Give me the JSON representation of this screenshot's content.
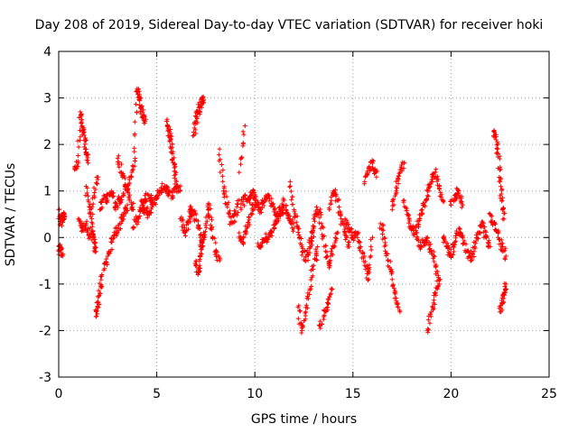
{
  "chart_data": {
    "type": "scatter",
    "title": "Day 208 of 2019, Sidereal Day-to-day VTEC variation (SDTVAR) for receiver hoki",
    "xlabel": "GPS time / hours",
    "ylabel": "SDTVAR / TECUs",
    "xlim": [
      0,
      25
    ],
    "ylim": [
      -3,
      4
    ],
    "xticks": [
      "0",
      "5",
      "10",
      "15",
      "20",
      "25"
    ],
    "yticks": [
      "-3",
      "-2",
      "-1",
      "0",
      "1",
      "2",
      "3",
      "4"
    ],
    "grid": true,
    "marker": "+",
    "series_color": "#ff0000",
    "series": [
      {
        "name": "SDTVAR",
        "segments": [
          {
            "x": [
              0.0,
              0.1,
              0.2,
              0.3
            ],
            "y": [
              0.6,
              0.3,
              0.5,
              0.4
            ]
          },
          {
            "x": [
              0.0,
              0.1,
              0.2
            ],
            "y": [
              -0.3,
              -0.2,
              -0.4
            ]
          },
          {
            "x": [
              0.8,
              1.0,
              1.1,
              1.2,
              1.3,
              1.4,
              1.5
            ],
            "y": [
              1.5,
              1.6,
              2.7,
              2.4,
              2.2,
              1.9,
              1.6
            ]
          },
          {
            "x": [
              1.0,
              1.2,
              1.4,
              1.6,
              1.8,
              2.0
            ],
            "y": [
              0.4,
              0.2,
              0.3,
              0.0,
              0.9,
              1.3
            ]
          },
          {
            "x": [
              1.4,
              1.6,
              1.7,
              1.8,
              1.9
            ],
            "y": [
              1.1,
              0.6,
              0.1,
              -0.1,
              -0.3
            ]
          },
          {
            "x": [
              1.9,
              2.0,
              2.1,
              2.2
            ],
            "y": [
              -1.7,
              -1.5,
              -1.2,
              -0.8
            ]
          },
          {
            "x": [
              2.1,
              2.3,
              2.5,
              2.7,
              2.9,
              3.1,
              3.3
            ],
            "y": [
              0.6,
              0.9,
              0.8,
              1.0,
              0.6,
              0.8,
              0.9
            ]
          },
          {
            "x": [
              2.3,
              2.5,
              2.7,
              2.9,
              3.1,
              3.3,
              3.5
            ],
            "y": [
              -0.7,
              -0.4,
              -0.1,
              0.1,
              0.3,
              0.5,
              0.7
            ]
          },
          {
            "x": [
              3.0,
              3.2,
              3.4,
              3.6,
              3.8
            ],
            "y": [
              1.7,
              1.4,
              1.1,
              0.8,
              0.6
            ]
          },
          {
            "x": [
              3.5,
              3.7,
              3.9,
              4.0,
              4.1,
              4.2,
              4.3,
              4.4
            ],
            "y": [
              1.0,
              1.3,
              1.7,
              3.2,
              3.0,
              2.8,
              2.6,
              2.5
            ]
          },
          {
            "x": [
              3.8,
              4.0,
              4.2,
              4.4,
              4.6,
              4.8
            ],
            "y": [
              0.2,
              0.4,
              0.6,
              0.8,
              0.9,
              0.7
            ]
          },
          {
            "x": [
              4.2,
              4.4,
              4.6,
              4.8,
              5.0,
              5.2,
              5.4,
              5.6,
              5.8,
              6.0,
              6.2
            ],
            "y": [
              0.8,
              0.6,
              0.5,
              0.7,
              0.9,
              1.0,
              1.1,
              1.0,
              0.9,
              1.1,
              1.0
            ]
          },
          {
            "x": [
              5.5,
              5.6,
              5.7,
              5.8,
              5.9,
              6.0
            ],
            "y": [
              2.5,
              2.3,
              2.1,
              1.8,
              1.5,
              1.2
            ]
          },
          {
            "x": [
              6.2,
              6.4,
              6.6,
              6.8
            ],
            "y": [
              0.4,
              0.1,
              0.3,
              0.6
            ]
          },
          {
            "x": [
              6.9,
              7.0,
              7.1,
              7.2,
              7.3,
              7.4
            ],
            "y": [
              2.2,
              2.5,
              2.7,
              2.8,
              3.0,
              2.9
            ]
          },
          {
            "x": [
              6.7,
              6.9,
              7.1,
              7.3,
              7.5,
              7.7
            ],
            "y": [
              0.6,
              0.5,
              0.2,
              -0.1,
              0.3,
              0.7
            ]
          },
          {
            "x": [
              7.0,
              7.1,
              7.2,
              7.3,
              7.4
            ],
            "y": [
              -0.5,
              -0.8,
              -0.4,
              -0.2,
              0.0
            ]
          },
          {
            "x": [
              7.6,
              7.8,
              8.0,
              8.2
            ],
            "y": [
              0.7,
              0.2,
              -0.3,
              -0.5
            ]
          },
          {
            "x": [
              8.2,
              8.4,
              8.6,
              8.8,
              9.0,
              9.2
            ],
            "y": [
              1.9,
              1.0,
              0.7,
              0.3,
              0.5,
              0.8
            ]
          },
          {
            "x": [
              9.2,
              9.5
            ],
            "y": [
              1.4,
              2.4
            ]
          },
          {
            "x": [
              9.3,
              9.5,
              9.7,
              9.9,
              10.1,
              10.3,
              10.5,
              10.7,
              10.9,
              11.1,
              11.3,
              11.5
            ],
            "y": [
              0.6,
              0.9,
              0.8,
              1.0,
              0.7,
              0.6,
              0.8,
              0.9,
              0.7,
              0.5,
              0.6,
              0.8
            ]
          },
          {
            "x": [
              9.2,
              9.4,
              9.6,
              9.8,
              10.0
            ],
            "y": [
              0.1,
              -0.1,
              0.2,
              0.5,
              0.8
            ]
          },
          {
            "x": [
              10.2,
              10.4,
              10.6,
              10.8,
              11.0,
              11.2,
              11.4,
              11.6,
              11.8,
              12.0
            ],
            "y": [
              -0.2,
              -0.1,
              0.0,
              0.1,
              0.2,
              0.4,
              0.6,
              0.6,
              0.4,
              0.2
            ]
          },
          {
            "x": [
              11.8,
              12.0,
              12.2,
              12.4,
              12.6,
              12.8,
              13.0
            ],
            "y": [
              1.2,
              0.6,
              0.2,
              -0.2,
              -0.5,
              -0.2,
              0.2
            ]
          },
          {
            "x": [
              12.2,
              12.4,
              12.6,
              12.8,
              13.0,
              13.2
            ],
            "y": [
              -1.5,
              -2.0,
              -1.6,
              -1.1,
              -0.6,
              -0.2
            ]
          },
          {
            "x": [
              12.8,
              13.0,
              13.2,
              13.4,
              13.6,
              13.8,
              14.0,
              14.2
            ],
            "y": [
              -0.2,
              0.4,
              0.6,
              0.3,
              -0.3,
              -0.6,
              -0.2,
              0.1
            ]
          },
          {
            "x": [
              13.3,
              13.5,
              13.7,
              13.9
            ],
            "y": [
              -1.9,
              -1.7,
              -1.4,
              -1.1
            ]
          },
          {
            "x": [
              13.8,
              14.0,
              14.2,
              14.4,
              14.6,
              14.8
            ],
            "y": [
              0.6,
              1.0,
              0.8,
              0.4,
              0.1,
              -0.2
            ]
          },
          {
            "x": [
              14.6,
              14.8,
              15.0,
              15.2,
              15.4,
              15.6,
              15.8,
              16.0
            ],
            "y": [
              0.4,
              0.2,
              0.0,
              0.1,
              -0.2,
              -0.6,
              -0.9,
              0.0
            ]
          },
          {
            "x": [
              15.6,
              15.8,
              16.0,
              16.2
            ],
            "y": [
              1.2,
              1.5,
              1.6,
              1.3
            ]
          },
          {
            "x": [
              16.4,
              16.6,
              16.8,
              17.0,
              17.2,
              17.4
            ],
            "y": [
              0.3,
              0.0,
              -0.5,
              -0.9,
              -1.3,
              -1.6
            ]
          },
          {
            "x": [
              17.0,
              17.2,
              17.4,
              17.6
            ],
            "y": [
              0.6,
              1.0,
              1.4,
              1.6
            ]
          },
          {
            "x": [
              17.6,
              17.8,
              18.0,
              18.2,
              18.4,
              18.6,
              18.8
            ],
            "y": [
              0.8,
              0.5,
              0.2,
              0.1,
              0.4,
              0.7,
              0.9
            ]
          },
          {
            "x": [
              18.2,
              18.4,
              18.6,
              18.8,
              19.0,
              19.2,
              19.4
            ],
            "y": [
              0.1,
              -0.2,
              -0.1,
              0.0,
              -0.3,
              -0.6,
              -1.0
            ]
          },
          {
            "x": [
              18.8,
              19.0,
              19.2,
              19.4
            ],
            "y": [
              -2.0,
              -1.6,
              -1.2,
              -0.9
            ]
          },
          {
            "x": [
              18.8,
              19.0,
              19.2,
              19.4,
              19.6
            ],
            "y": [
              1.0,
              1.2,
              1.4,
              1.1,
              0.8
            ]
          },
          {
            "x": [
              19.6,
              19.8,
              20.0,
              20.2,
              20.4,
              20.6,
              20.8,
              21.0,
              21.2,
              21.4,
              21.6,
              21.8,
              22.0
            ],
            "y": [
              0.0,
              -0.2,
              -0.4,
              -0.1,
              0.2,
              0.0,
              -0.3,
              -0.5,
              -0.2,
              0.1,
              0.3,
              0.0,
              -0.2
            ]
          },
          {
            "x": [
              20.0,
              20.2,
              20.4,
              20.6
            ],
            "y": [
              0.7,
              0.9,
              1.0,
              0.7
            ]
          },
          {
            "x": [
              22.2,
              22.3,
              22.4,
              22.5,
              22.6,
              22.7
            ],
            "y": [
              2.3,
              2.1,
              1.8,
              1.2,
              0.8,
              0.4
            ]
          },
          {
            "x": [
              22.5,
              22.6,
              22.7,
              22.8
            ],
            "y": [
              -1.6,
              -1.4,
              -1.2,
              -1.0
            ]
          },
          {
            "x": [
              22.0,
              22.2,
              22.4,
              22.6,
              22.8
            ],
            "y": [
              0.5,
              0.3,
              0.1,
              -0.2,
              -0.4
            ]
          }
        ]
      }
    ]
  }
}
